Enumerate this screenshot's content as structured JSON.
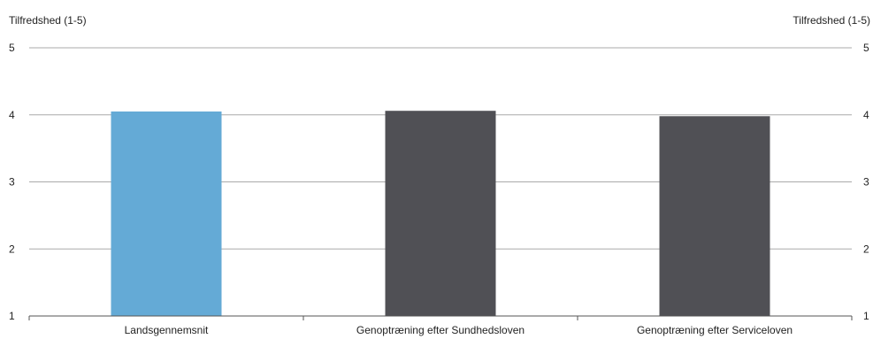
{
  "chart_data": {
    "type": "bar",
    "title": "",
    "xlabel": "",
    "ylabel_left": "Tilfredshed (1-5)",
    "ylabel_right": "Tilfredshed (1-5)",
    "ylim": [
      1,
      5
    ],
    "yticks": [
      "1",
      "2",
      "3",
      "4",
      "5"
    ],
    "grid": true,
    "legend": "none",
    "categories": [
      "Landsgennemsnit",
      "Genoptræning efter Sundhedsloven",
      "Genoptræning efter Serviceloven"
    ],
    "values": [
      4.05,
      4.06,
      3.98
    ],
    "colors": [
      "#64aad6",
      "#505055",
      "#505055"
    ],
    "grid_color": "#aaaaaa",
    "axis_color": "#555555"
  }
}
